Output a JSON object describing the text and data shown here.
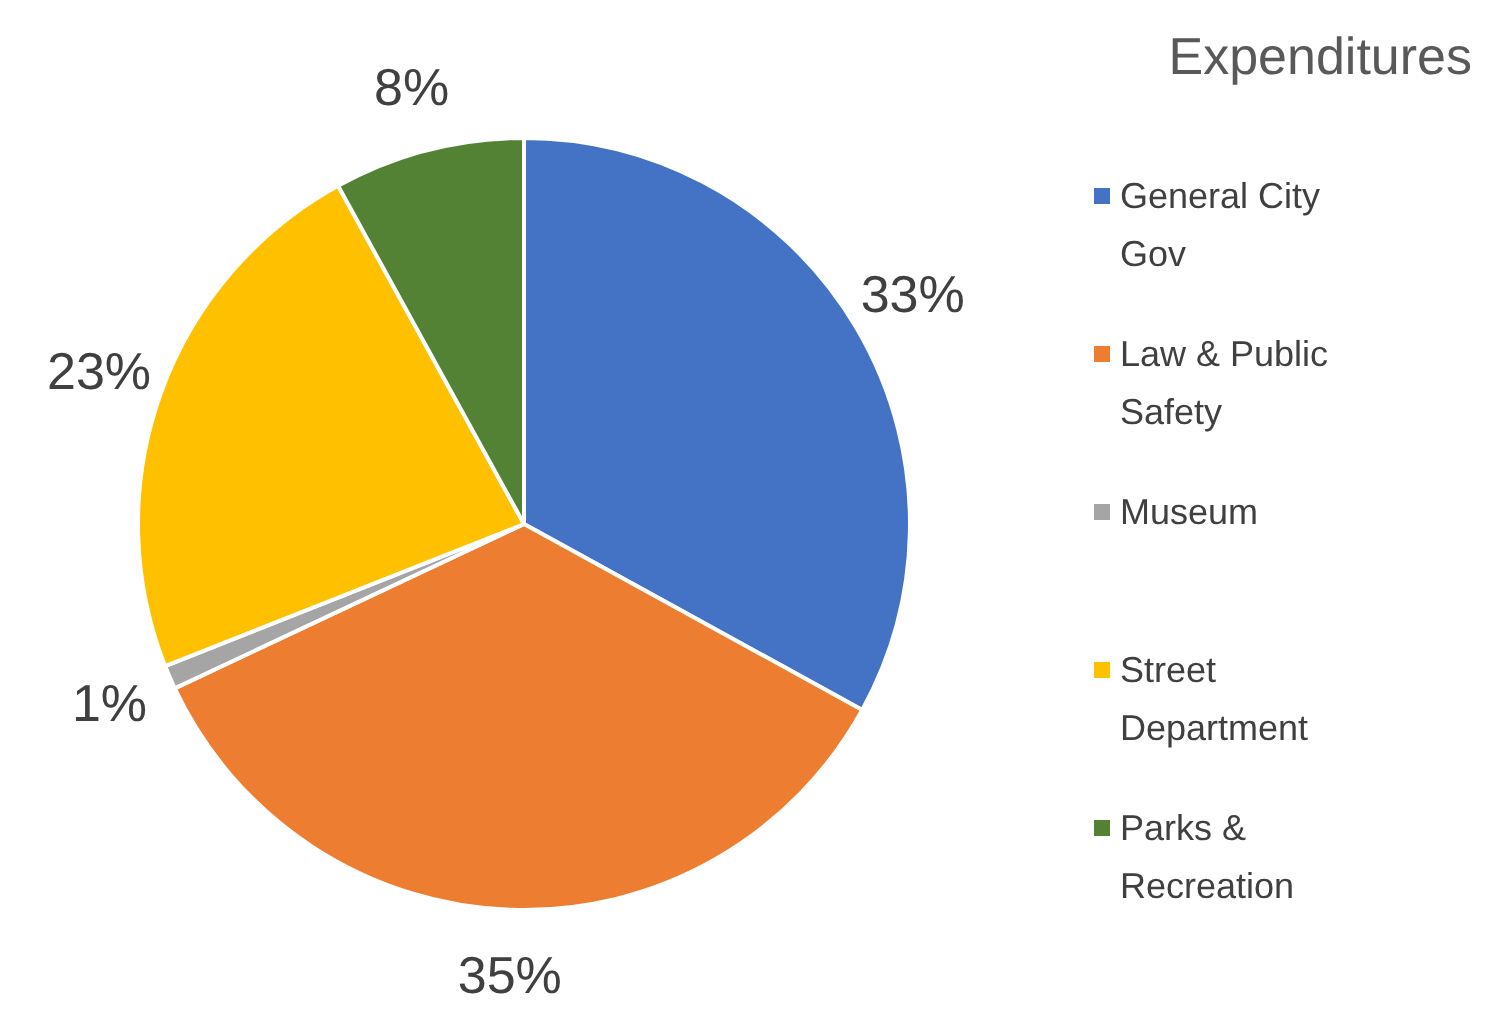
{
  "chart_data": {
    "type": "pie",
    "title": "Expenditures",
    "categories": [
      "General City Gov",
      "Law & Public Safety",
      "Museum",
      "Street Department",
      "Parks & Recreation"
    ],
    "values": [
      33,
      35,
      1,
      23,
      8
    ],
    "colors": [
      "#4472c4",
      "#ed7d31",
      "#a5a5a5",
      "#ffc000",
      "#548235"
    ],
    "value_labels": [
      "33%",
      "35%",
      "1%",
      "23%",
      "8%"
    ],
    "legend": "right"
  }
}
